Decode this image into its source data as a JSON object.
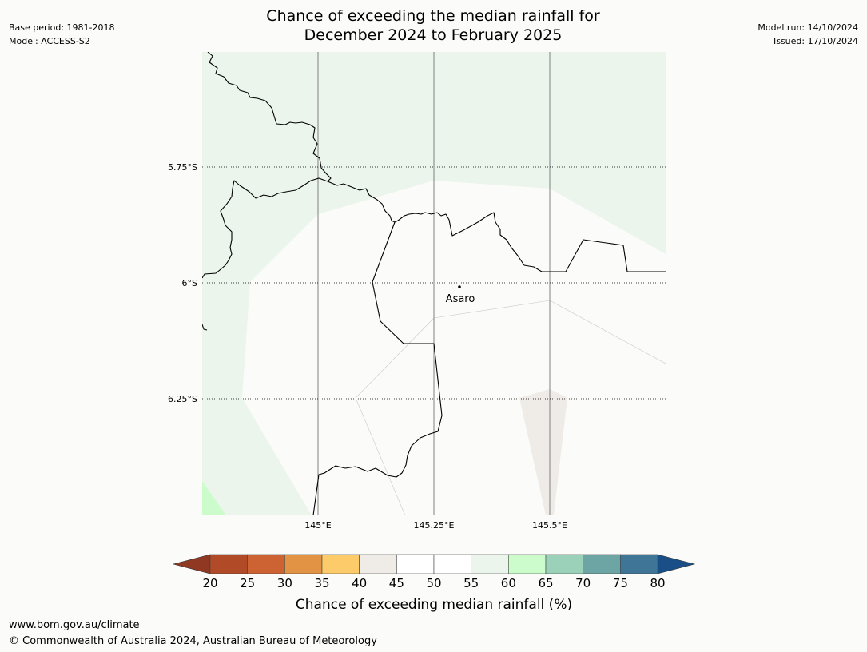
{
  "header": {
    "title_line1": "Chance of exceeding the median rainfall for",
    "title_line2": "December 2024 to February 2025",
    "base_period": "Base period: 1981-2018",
    "model": "Model: ACCESS-S2",
    "model_run": "Model run: 14/10/2024",
    "issued": "Issued: 17/10/2024"
  },
  "map": {
    "lat_labels": [
      "5.75°S",
      "6°S",
      "6.25°S"
    ],
    "lon_labels": [
      "145°E",
      "145.25°E",
      "145.5°E"
    ],
    "place": {
      "name": "Asaro"
    },
    "colors": {
      "band_55_60": "#ebf5ec",
      "band_60_65": "#ccfccc",
      "band_40_45": "#efebe7",
      "band_45_55": "#fbfcfa",
      "boundary": "#000000",
      "meridian": "#808080"
    }
  },
  "colorbar": {
    "label": "Chance of exceeding median rainfall (%)",
    "ticks": [
      "20",
      "25",
      "30",
      "35",
      "40",
      "45",
      "50",
      "55",
      "60",
      "65",
      "70",
      "75",
      "80"
    ],
    "under_color": "#913822",
    "over_color": "#1a4e86",
    "segment_colors": [
      "#b14a27",
      "#cd6333",
      "#e29444",
      "#fdcb6a",
      "#efebe7",
      "#ffffff",
      "#ffffff",
      "#ebf5ec",
      "#ccfccc",
      "#9bd1b8",
      "#6da4a4",
      "#3f7698"
    ]
  },
  "footer": {
    "url": "www.bom.gov.au/climate",
    "copyright": "© Commonwealth of Australia 2024, Australian Bureau of Meteorology"
  }
}
